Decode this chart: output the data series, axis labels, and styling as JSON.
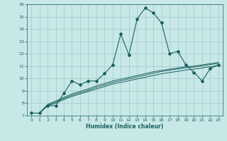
{
  "xlabel": "Humidex (Indice chaleur)",
  "ylabel": "",
  "bg_color": "#c8e8e8",
  "grid_color": "#a0c8c8",
  "line_color": "#1a6060",
  "xlim": [
    -0.5,
    23.5
  ],
  "ylim": [
    7,
    16
  ],
  "xticks": [
    0,
    1,
    2,
    3,
    4,
    5,
    6,
    7,
    8,
    9,
    10,
    11,
    12,
    13,
    14,
    15,
    16,
    17,
    18,
    19,
    20,
    21,
    22,
    23
  ],
  "yticks": [
    7,
    8,
    9,
    10,
    11,
    12,
    13,
    14,
    15,
    16
  ],
  "series_main": [
    7.2,
    7.2,
    7.8,
    7.8,
    8.8,
    9.8,
    9.5,
    9.8,
    9.8,
    10.4,
    11.1,
    13.6,
    11.9,
    14.8,
    15.7,
    15.3,
    14.5,
    12.0,
    12.2,
    11.1,
    10.5,
    9.8,
    10.8,
    11.1
  ],
  "series_line1": [
    7.2,
    7.2,
    7.8,
    8.0,
    8.3,
    8.55,
    8.75,
    8.95,
    9.15,
    9.35,
    9.55,
    9.68,
    9.82,
    9.96,
    10.1,
    10.24,
    10.38,
    10.48,
    10.58,
    10.68,
    10.75,
    10.85,
    10.95,
    11.05
  ],
  "series_line2": [
    7.2,
    7.2,
    7.85,
    8.1,
    8.38,
    8.65,
    8.85,
    9.05,
    9.28,
    9.48,
    9.68,
    9.82,
    9.97,
    10.12,
    10.27,
    10.42,
    10.57,
    10.67,
    10.77,
    10.87,
    10.92,
    11.02,
    11.12,
    11.22
  ],
  "series_line3": [
    7.2,
    7.2,
    7.9,
    8.18,
    8.48,
    8.75,
    8.96,
    9.16,
    9.4,
    9.6,
    9.8,
    9.94,
    10.09,
    10.24,
    10.39,
    10.54,
    10.65,
    10.75,
    10.85,
    10.95,
    11.0,
    11.1,
    11.2,
    11.3
  ]
}
